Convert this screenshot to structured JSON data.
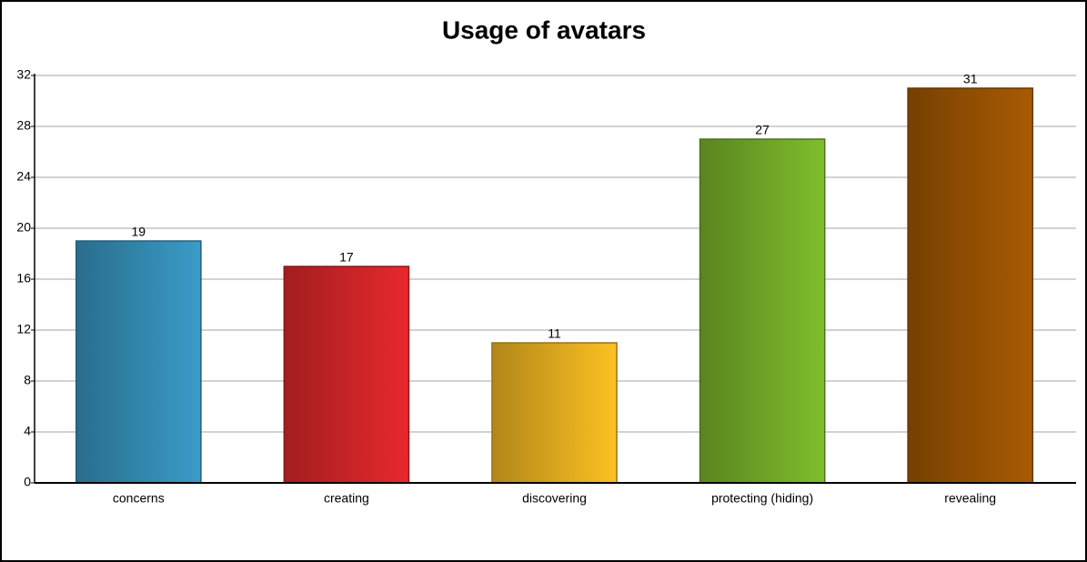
{
  "chart_data": {
    "type": "bar",
    "title": "Usage of avatars",
    "categories": [
      "concerns",
      "creating",
      "discovering",
      "protecting (hiding)",
      "revealing"
    ],
    "values": [
      19,
      17,
      11,
      27,
      31
    ],
    "colors": [
      "#3a9cc8",
      "#e8292d",
      "#fdc123",
      "#7fbe2c",
      "#a85b03"
    ],
    "ylim": [
      0,
      32
    ],
    "yticks": [
      0,
      4,
      8,
      12,
      16,
      20,
      24,
      28,
      32
    ],
    "grid": true
  }
}
